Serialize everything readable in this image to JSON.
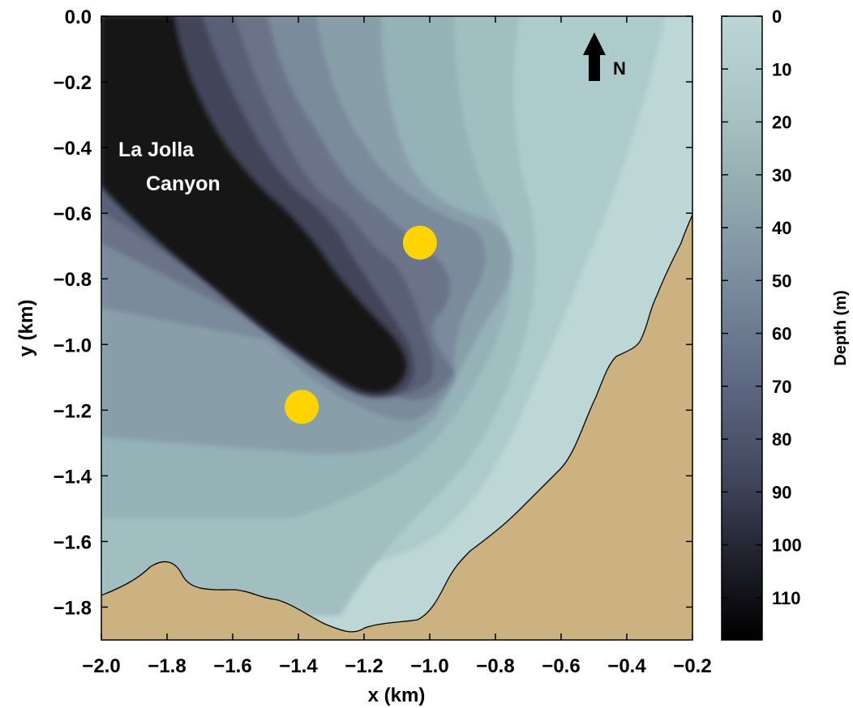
{
  "map": {
    "annotation_lines": [
      "La Jolla",
      "Canyon"
    ],
    "north_label": "N",
    "x_axis_label": "x (km)",
    "y_axis_label": "y (km)",
    "x_range": [
      -2.0,
      -0.2
    ],
    "y_range": [
      -1.9,
      0.0
    ],
    "x_ticks": [
      "−2.0",
      "−1.8",
      "−1.6",
      "−1.4",
      "−1.2",
      "−1.0",
      "−0.8",
      "−0.6",
      "−0.4",
      "−0.2"
    ],
    "y_ticks": [
      "0.0",
      "−0.2",
      "−0.4",
      "−0.6",
      "−0.8",
      "−1.0",
      "−1.2",
      "−1.4",
      "−1.6",
      "−1.8"
    ],
    "markers": [
      {
        "x": -1.03,
        "y": -0.69,
        "color": "#FFD400"
      },
      {
        "x": -1.39,
        "y": -1.19,
        "color": "#FFD400"
      }
    ],
    "land_color": "#CDB281",
    "colorbar": {
      "label": "Depth (m)",
      "range": [
        0,
        118
      ],
      "ticks": [
        "0",
        "10",
        "20",
        "30",
        "40",
        "50",
        "60",
        "70",
        "80",
        "90",
        "100",
        "110"
      ],
      "shallow_color": "#BBD6D4",
      "deep_color": "#000000"
    }
  }
}
